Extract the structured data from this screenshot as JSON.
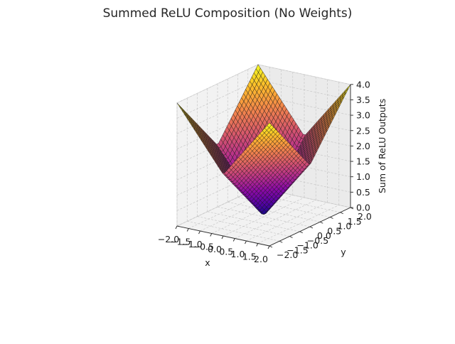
{
  "chart_data": {
    "type": "surface",
    "title": "Summed ReLU Composition (No Weights)",
    "xlabel": "x",
    "ylabel": "y",
    "zlabel": "Sum of ReLU Outputs",
    "xlim": [
      -2.0,
      2.0
    ],
    "ylim": [
      -2.0,
      2.0
    ],
    "zlim": [
      0.0,
      4.0
    ],
    "x_ticks": [
      -2.0,
      -1.5,
      -1.0,
      -0.5,
      0.0,
      0.5,
      1.0,
      1.5,
      2.0
    ],
    "y_ticks": [
      -2.0,
      -1.5,
      -1.0,
      -0.5,
      0.0,
      0.5,
      1.0,
      1.5,
      2.0
    ],
    "z_ticks": [
      0.0,
      0.5,
      1.0,
      1.5,
      2.0,
      2.5,
      3.0,
      3.5,
      4.0
    ],
    "x_tick_labels": [
      "−2.0",
      "−1.5",
      "−1.0",
      "−0.5",
      "0.0",
      "0.5",
      "1.0",
      "1.5",
      "2.0"
    ],
    "y_tick_labels": [
      "−2.0",
      "−1.5",
      "−1.0",
      "−0.5",
      "0.0",
      "0.5",
      "1.0",
      "1.5",
      "2.0"
    ],
    "z_tick_labels": [
      "0.0",
      "0.5",
      "1.0",
      "1.5",
      "2.0",
      "2.5",
      "3.0",
      "3.5",
      "4.0"
    ],
    "function": "relu(x) + relu(-x) + relu(y) + relu(-y)",
    "grid_samples": 40,
    "colormap": "plasma",
    "grid": true
  }
}
